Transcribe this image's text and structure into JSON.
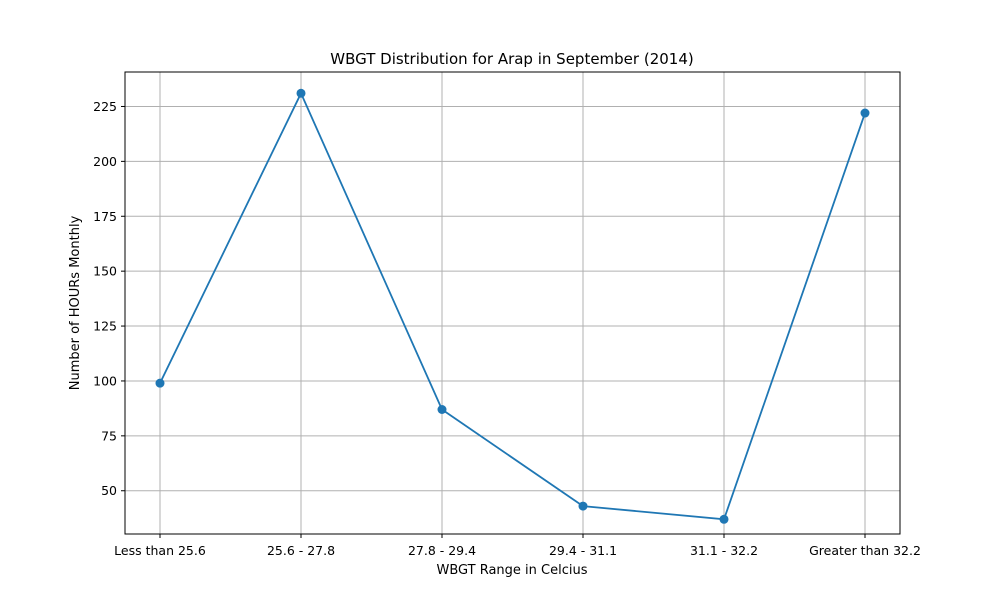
{
  "chart_data": {
    "type": "line",
    "title": "WBGT Distribution for Arap in September (2014)",
    "xlabel": "WBGT Range in Celcius",
    "ylabel": "Number of HOURs Monthly",
    "categories": [
      "Less than 25.6",
      "25.6 - 27.8",
      "27.8 - 29.4",
      "29.4 - 31.1",
      "31.1 - 32.2",
      "Greater than 32.2"
    ],
    "values": [
      99,
      231,
      87,
      43,
      37,
      222
    ],
    "ylim": [
      30.3,
      240.7
    ],
    "yticks": [
      50,
      75,
      100,
      125,
      150,
      175,
      200,
      225
    ],
    "grid": true,
    "line_color": "#1f77b4",
    "marker": "circle"
  }
}
